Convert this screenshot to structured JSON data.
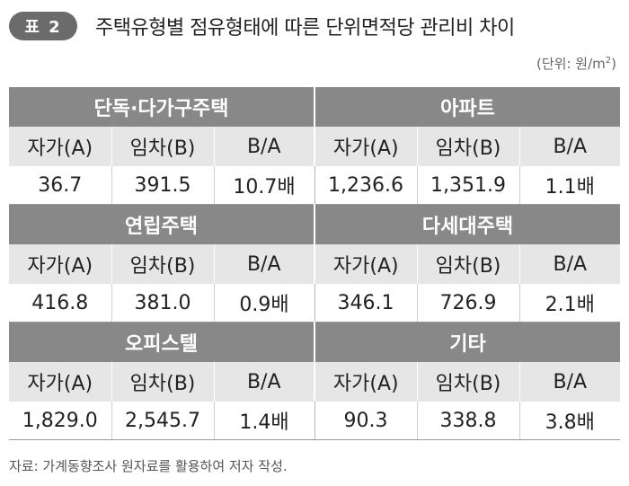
{
  "header": {
    "badge": "표 2",
    "title": "주택유형별 점유형태에 따른 단위면적당 관리비 차이",
    "unit_prefix": "(단위: 원/m",
    "unit_sup": "2",
    "unit_suffix": ")"
  },
  "columns": {
    "own": "자가(A)",
    "rent": "임차(B)",
    "ratio": "B/A"
  },
  "groups": [
    {
      "left": {
        "name": "단독·다가구주택",
        "own": "36.7",
        "rent": "391.5",
        "ratio": "10.7배"
      },
      "right": {
        "name": "아파트",
        "own": "1,236.6",
        "rent": "1,351.9",
        "ratio": "1.1배"
      }
    },
    {
      "left": {
        "name": "연립주택",
        "own": "416.8",
        "rent": "381.0",
        "ratio": "0.9배"
      },
      "right": {
        "name": "다세대주택",
        "own": "346.1",
        "rent": "726.9",
        "ratio": "2.1배"
      }
    },
    {
      "left": {
        "name": "오피스텔",
        "own": "1,829.0",
        "rent": "2,545.7",
        "ratio": "1.4배"
      },
      "right": {
        "name": "기타",
        "own": "90.3",
        "rent": "338.8",
        "ratio": "3.8배"
      }
    }
  ],
  "footer": {
    "source": "자료: 가계동향조사 원자료를 활용하여 저자 작성."
  },
  "colors": {
    "badge": "#6b6b6b",
    "group_header": "#888888",
    "column_header": "#e6e6e6"
  }
}
